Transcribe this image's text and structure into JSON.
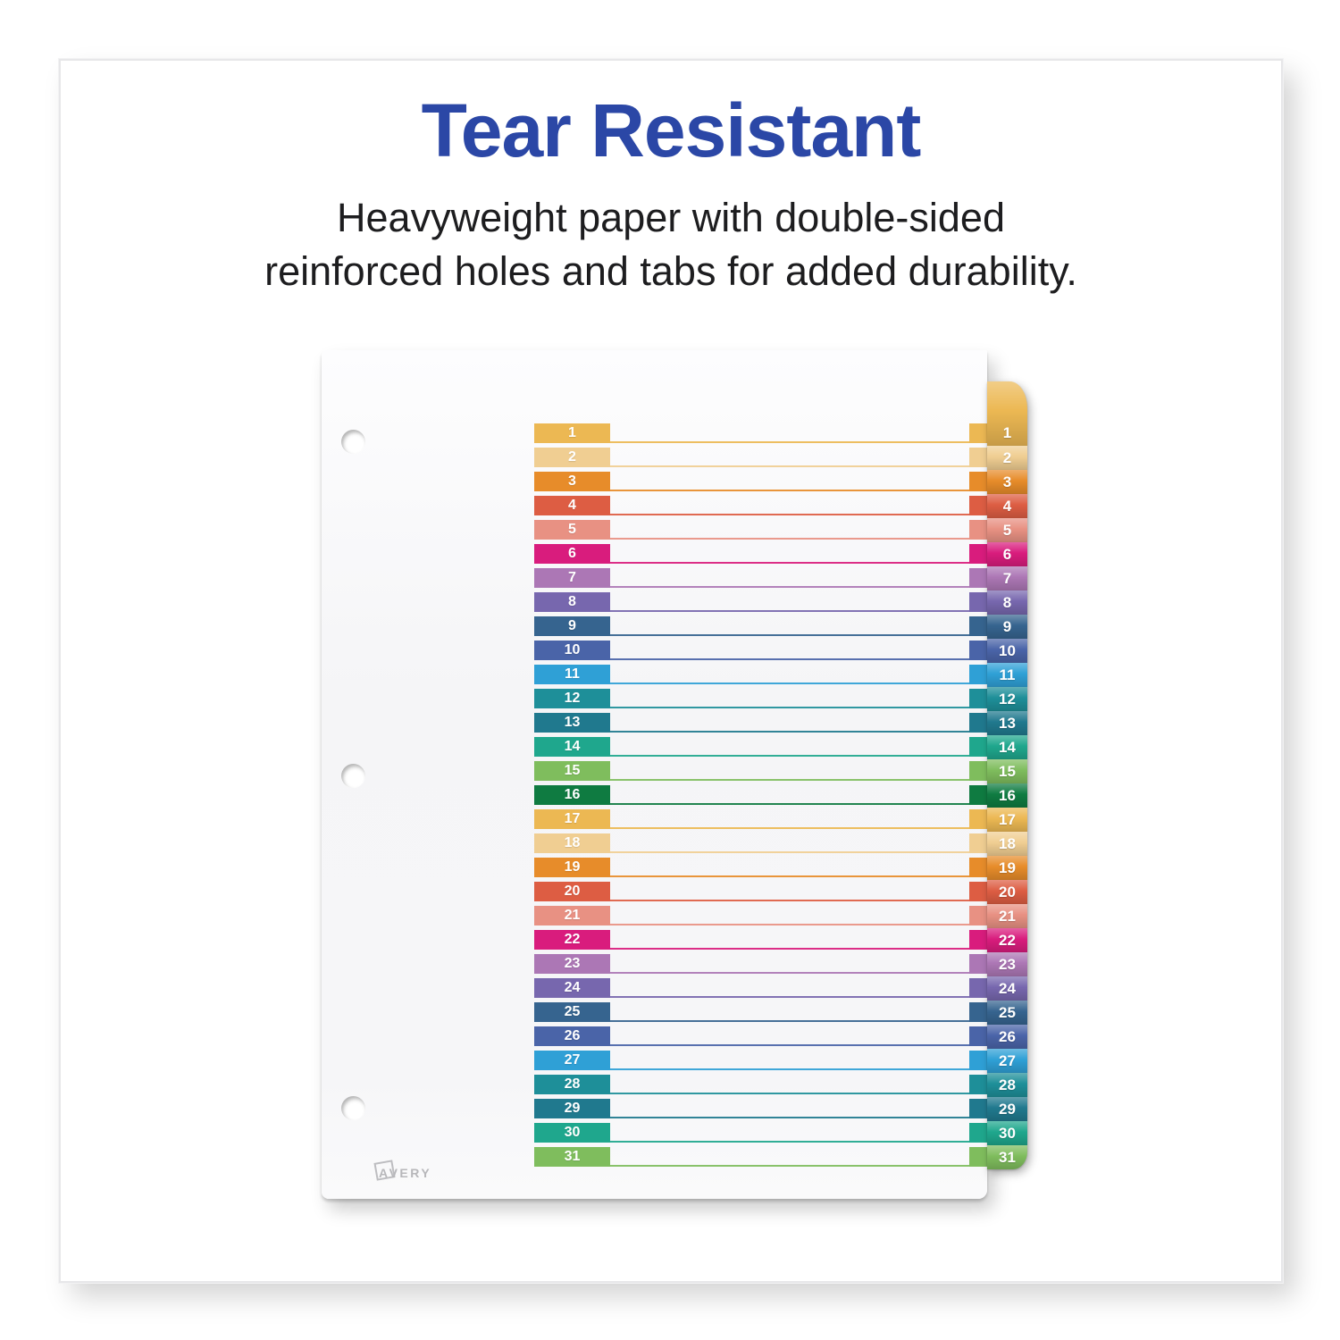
{
  "header": {
    "title": "Tear Resistant",
    "subtitle_lines": [
      "Heavyweight paper with double-sided",
      "reinforced holes and tabs for added durability."
    ]
  },
  "colors": {
    "title_blue": "#2B47A6",
    "subtitle_text": "#1D1D1F",
    "brand_gray": "#B7B7BA"
  },
  "sheet": {
    "brand": "AVERY",
    "rows": [
      {
        "label": "1",
        "color": "#ECB853"
      },
      {
        "label": "2",
        "color": "#F0CE92"
      },
      {
        "label": "3",
        "color": "#E78C2A"
      },
      {
        "label": "4",
        "color": "#DD5D43"
      },
      {
        "label": "5",
        "color": "#E89183"
      },
      {
        "label": "6",
        "color": "#D91C7D"
      },
      {
        "label": "7",
        "color": "#AC77B5"
      },
      {
        "label": "8",
        "color": "#7767AE"
      },
      {
        "label": "9",
        "color": "#36648F"
      },
      {
        "label": "10",
        "color": "#4A64A8"
      },
      {
        "label": "11",
        "color": "#2FA0D6"
      },
      {
        "label": "12",
        "color": "#1E8F99"
      },
      {
        "label": "13",
        "color": "#20798E"
      },
      {
        "label": "14",
        "color": "#1FA78D"
      },
      {
        "label": "15",
        "color": "#7FBD5D"
      },
      {
        "label": "16",
        "color": "#0F7B41"
      },
      {
        "label": "17",
        "color": "#ECB853"
      },
      {
        "label": "18",
        "color": "#F0CE92"
      },
      {
        "label": "19",
        "color": "#E78C2A"
      },
      {
        "label": "20",
        "color": "#DD5D43"
      },
      {
        "label": "21",
        "color": "#E89183"
      },
      {
        "label": "22",
        "color": "#D91C7D"
      },
      {
        "label": "23",
        "color": "#AC77B5"
      },
      {
        "label": "24",
        "color": "#7767AE"
      },
      {
        "label": "25",
        "color": "#36648F"
      },
      {
        "label": "26",
        "color": "#4A64A8"
      },
      {
        "label": "27",
        "color": "#2FA0D6"
      },
      {
        "label": "28",
        "color": "#1E8F99"
      },
      {
        "label": "29",
        "color": "#20798E"
      },
      {
        "label": "30",
        "color": "#1FA78D"
      },
      {
        "label": "31",
        "color": "#7FBD5D"
      }
    ]
  }
}
